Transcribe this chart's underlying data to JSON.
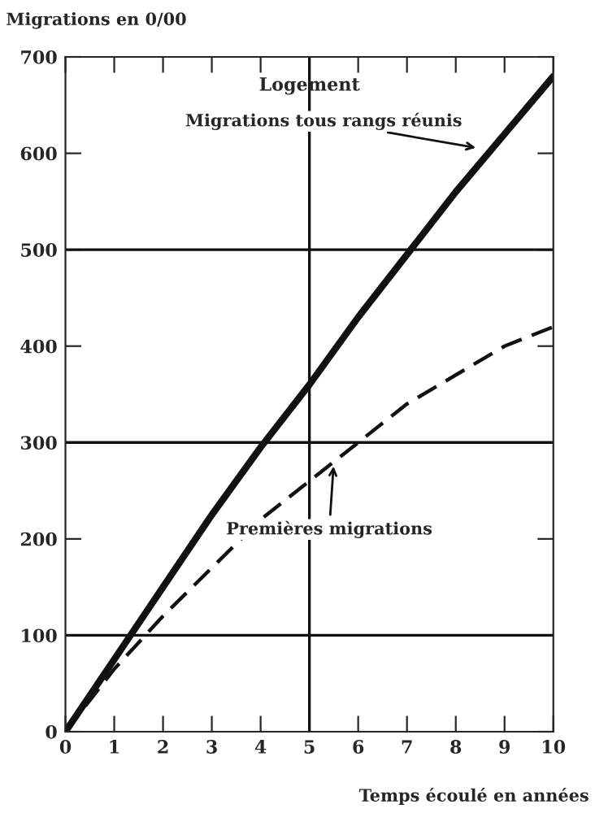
{
  "chart_data": {
    "type": "line",
    "title": "Logement",
    "xlabel": "Temps écoulé en années",
    "ylabel": "Migrations en 0/00",
    "x": [
      0,
      1,
      2,
      3,
      4,
      5,
      6,
      7,
      8,
      9,
      10
    ],
    "series": [
      {
        "color": "#111111",
        "line_style": "solid",
        "values": [
          0,
          75,
          150,
          225,
          295,
          360,
          430,
          495,
          560,
          620,
          680
        ]
      },
      {
        "color": "#111111",
        "line_style": "dashed",
        "values": [
          0,
          65,
          120,
          170,
          220,
          260,
          300,
          340,
          370,
          400,
          420
        ]
      }
    ],
    "annotations": [
      {
        "text": "Migrations tous rangs réunis",
        "x": 8.5,
        "y": 605
      },
      {
        "text": "Premières migrations",
        "x": 5.5,
        "y": 280
      }
    ],
    "ref_lines": [
      {
        "axis": "y",
        "value": 100,
        "label": null
      },
      {
        "axis": "y",
        "value": 300,
        "label": null
      },
      {
        "axis": "y",
        "value": 500,
        "label": null
      },
      {
        "axis": "x",
        "value": 5,
        "label": null
      }
    ],
    "xlim": [
      0,
      10
    ],
    "ylim": [
      0,
      700
    ],
    "xticks": [
      0,
      1,
      2,
      3,
      4,
      5,
      6,
      7,
      8,
      9,
      10
    ],
    "yticks": [
      0,
      100,
      200,
      300,
      400,
      500,
      600,
      700
    ],
    "grid": false,
    "legend": false,
    "marker": "none"
  }
}
